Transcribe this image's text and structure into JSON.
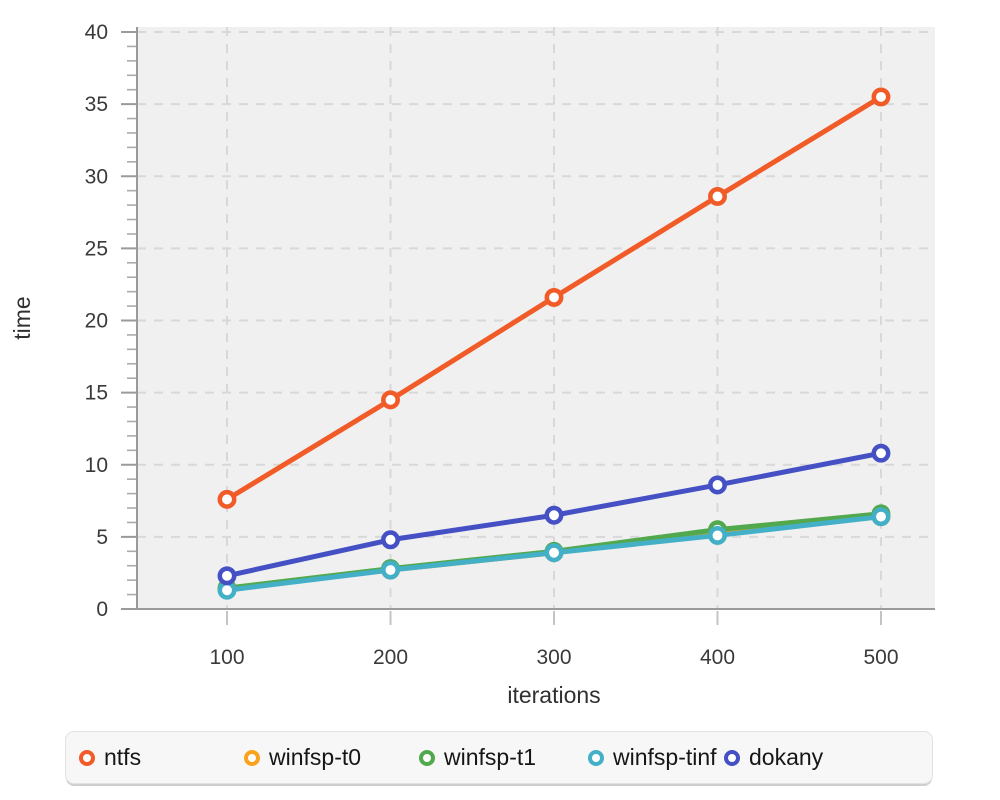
{
  "chart_data": {
    "type": "line",
    "title": "",
    "xlabel": "iterations",
    "ylabel": "time",
    "x": [
      100,
      200,
      300,
      400,
      500
    ],
    "xticks": [
      100,
      200,
      300,
      400,
      500
    ],
    "yticks": [
      0,
      5,
      10,
      15,
      20,
      25,
      30,
      35,
      40
    ],
    "xlim": [
      45,
      533
    ],
    "ylim": [
      0,
      40.3
    ],
    "grid": "dashed",
    "legend_position": "bottom",
    "marker_style": "open-circle",
    "series": [
      {
        "name": "ntfs",
        "color": "#F15B27",
        "values": [
          7.6,
          14.5,
          21.6,
          28.6,
          35.5
        ]
      },
      {
        "name": "winfsp-t0",
        "color": "#FAA21B",
        "values": [
          1.4,
          2.7,
          3.9,
          5.2,
          6.4
        ]
      },
      {
        "name": "winfsp-t1",
        "color": "#52A94D",
        "values": [
          1.45,
          2.8,
          4.0,
          5.5,
          6.6
        ]
      },
      {
        "name": "winfsp-tinf",
        "color": "#43B0C7",
        "values": [
          1.3,
          2.7,
          3.9,
          5.1,
          6.4
        ]
      },
      {
        "name": "dokany",
        "color": "#4450C4",
        "values": [
          2.3,
          4.8,
          6.5,
          8.6,
          10.8
        ]
      }
    ]
  },
  "style_colors": {
    "plot_bg": "#f0f0f0",
    "gridline": "#d8d8d8",
    "axis": "#9a9a9a",
    "minor_tick": "#ababab",
    "outer_tick": "#c4c4c4",
    "marker_fill": "#ffffff"
  }
}
